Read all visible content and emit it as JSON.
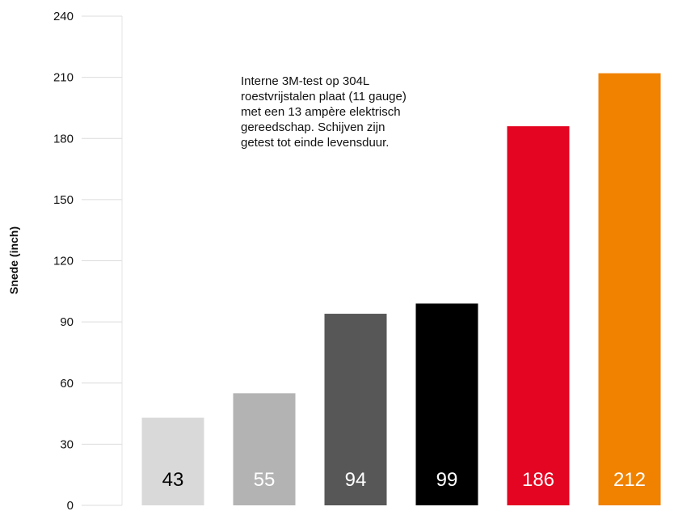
{
  "chart_data": {
    "type": "bar",
    "title": "",
    "xlabel": "",
    "ylabel": "Snede (inch)",
    "ylim": [
      0,
      240
    ],
    "yticks": [
      0,
      30,
      60,
      90,
      120,
      150,
      180,
      210,
      240
    ],
    "grid": false,
    "legend": false,
    "values": [
      43,
      55,
      94,
      99,
      186,
      212
    ],
    "value_labels": [
      "43",
      "55",
      "94",
      "99",
      "186",
      "212"
    ],
    "colors": [
      "#d9d9d9",
      "#b3b3b3",
      "#575757",
      "#000000",
      "#e30521",
      "#f08200"
    ],
    "label_colors": [
      "#000000",
      "#ffffff",
      "#ffffff",
      "#ffffff",
      "#ffffff",
      "#ffffff"
    ],
    "annotation": "Interne 3M-test op 304L\nroestvrijstalen plaat (11 gauge)\nmet een 13 ampère elektrisch\ngereedschap. Schijven zijn\ngetest tot einde levensduur."
  }
}
